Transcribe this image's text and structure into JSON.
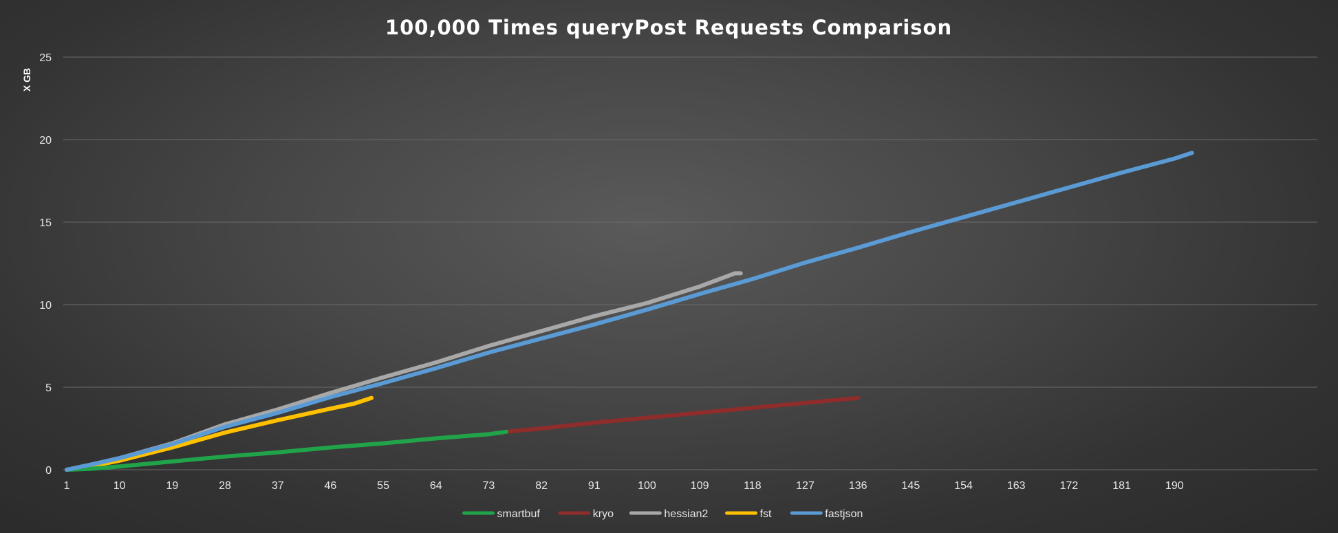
{
  "chart_data": {
    "type": "line",
    "title": "100,000 Times queryPost Requests Comparison",
    "ylabel": "X GB",
    "xlabel": "",
    "ylim": [
      0,
      25
    ],
    "y_ticks": [
      0,
      5,
      10,
      15,
      20,
      25
    ],
    "x_range": [
      1,
      194
    ],
    "x_ticks": [
      1,
      10,
      19,
      28,
      37,
      46,
      55,
      64,
      73,
      82,
      91,
      100,
      109,
      118,
      127,
      136,
      145,
      154,
      163,
      172,
      181,
      190
    ],
    "grid": true,
    "legend_position": "bottom",
    "series": [
      {
        "name": "smartbuf",
        "color": "#21a34a",
        "points": [
          [
            1,
            0
          ],
          [
            5,
            0.05
          ],
          [
            10,
            0.2
          ],
          [
            19,
            0.5
          ],
          [
            28,
            0.8
          ],
          [
            37,
            1.05
          ],
          [
            46,
            1.35
          ],
          [
            55,
            1.6
          ],
          [
            64,
            1.9
          ],
          [
            73,
            2.15
          ],
          [
            76,
            2.3
          ]
        ]
      },
      {
        "name": "kryo",
        "color": "#8e2d2b",
        "points": [
          [
            76,
            2.3
          ],
          [
            82,
            2.5
          ],
          [
            91,
            2.85
          ],
          [
            100,
            3.15
          ],
          [
            109,
            3.45
          ],
          [
            118,
            3.75
          ],
          [
            127,
            4.05
          ],
          [
            136,
            4.35
          ]
        ]
      },
      {
        "name": "hessian2",
        "color": "#a8a8a8",
        "points": [
          [
            1,
            0
          ],
          [
            5,
            0.3
          ],
          [
            10,
            0.7
          ],
          [
            19,
            1.6
          ],
          [
            28,
            2.75
          ],
          [
            37,
            3.65
          ],
          [
            46,
            4.65
          ],
          [
            55,
            5.6
          ],
          [
            64,
            6.5
          ],
          [
            73,
            7.5
          ],
          [
            82,
            8.4
          ],
          [
            91,
            9.3
          ],
          [
            100,
            10.1
          ],
          [
            109,
            11.1
          ],
          [
            115,
            11.9
          ],
          [
            116,
            11.9
          ]
        ]
      },
      {
        "name": "fst",
        "color": "#ffc000",
        "points": [
          [
            1,
            0
          ],
          [
            5,
            0.2
          ],
          [
            10,
            0.55
          ],
          [
            19,
            1.35
          ],
          [
            28,
            2.25
          ],
          [
            37,
            3.0
          ],
          [
            46,
            3.7
          ],
          [
            50,
            4.0
          ],
          [
            53,
            4.35
          ]
        ]
      },
      {
        "name": "fastjson",
        "color": "#5b9bd5",
        "points": [
          [
            1,
            0
          ],
          [
            5,
            0.3
          ],
          [
            10,
            0.7
          ],
          [
            19,
            1.55
          ],
          [
            28,
            2.6
          ],
          [
            37,
            3.45
          ],
          [
            46,
            4.4
          ],
          [
            55,
            5.25
          ],
          [
            64,
            6.15
          ],
          [
            73,
            7.1
          ],
          [
            82,
            7.95
          ],
          [
            91,
            8.8
          ],
          [
            100,
            9.7
          ],
          [
            109,
            10.65
          ],
          [
            118,
            11.55
          ],
          [
            127,
            12.55
          ],
          [
            136,
            13.45
          ],
          [
            145,
            14.4
          ],
          [
            154,
            15.3
          ],
          [
            163,
            16.2
          ],
          [
            172,
            17.1
          ],
          [
            181,
            18.0
          ],
          [
            190,
            18.85
          ],
          [
            193,
            19.2
          ]
        ]
      }
    ]
  }
}
